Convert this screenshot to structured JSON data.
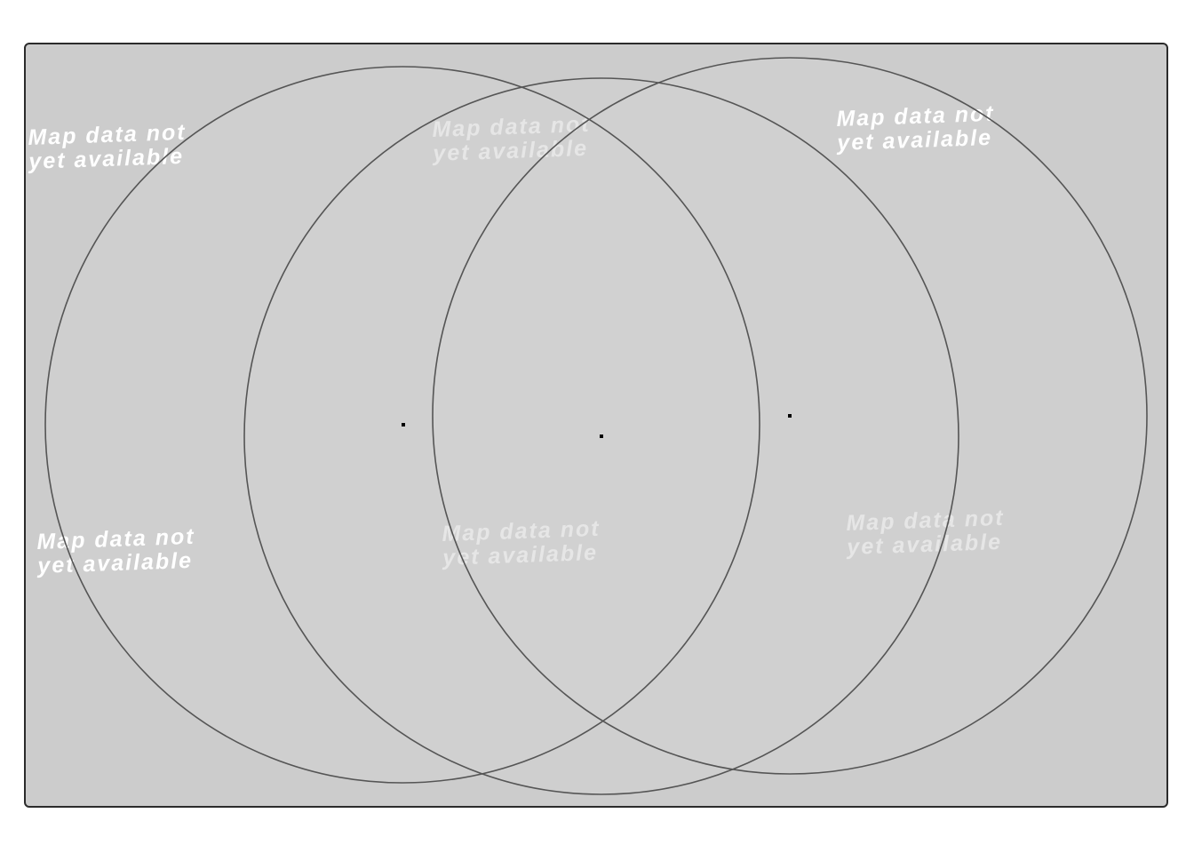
{
  "map": {
    "tiles": [
      {
        "text": "Map data not\nyet available"
      },
      {
        "text": "Map data not\nyet available"
      },
      {
        "text": "Map data not\nyet available"
      },
      {
        "text": "Map data not\nyet available"
      },
      {
        "text": "Map data not\nyet available"
      },
      {
        "text": "Map data not\nyet available"
      }
    ],
    "colors": {
      "background": "#cccccc",
      "overlap_fill": "#d4d4d4",
      "circle_stroke": "#555555",
      "frame_border": "#2b2b2b",
      "label_text": "#ffffff",
      "marker": "#000000"
    },
    "range_rings": [
      {
        "name": "left-ring"
      },
      {
        "name": "center-ring"
      },
      {
        "name": "right-ring"
      }
    ],
    "markers": [
      {
        "name": "left-center-marker"
      },
      {
        "name": "center-marker"
      },
      {
        "name": "right-center-marker"
      }
    ]
  }
}
